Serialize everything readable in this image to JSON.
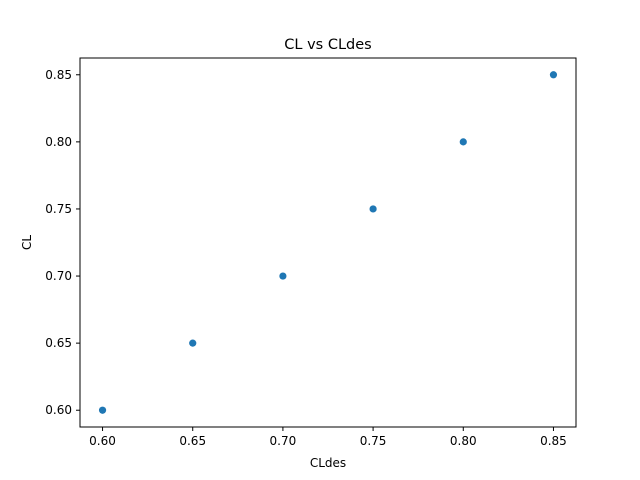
{
  "chart_data": {
    "type": "scatter",
    "title": "CL vs CLdes",
    "xlabel": "CLdes",
    "ylabel": "CL",
    "x": [
      0.6,
      0.65,
      0.7,
      0.75,
      0.8,
      0.85
    ],
    "y": [
      0.6,
      0.65,
      0.7,
      0.75,
      0.8,
      0.85
    ],
    "xlim": [
      0.5875,
      0.8625
    ],
    "ylim": [
      0.5875,
      0.8625
    ],
    "xticks": [
      "0.60",
      "0.65",
      "0.70",
      "0.75",
      "0.80",
      "0.85"
    ],
    "yticks": [
      "0.60",
      "0.65",
      "0.70",
      "0.75",
      "0.80",
      "0.85"
    ],
    "grid": false,
    "marker_color": "#1f77b4"
  }
}
